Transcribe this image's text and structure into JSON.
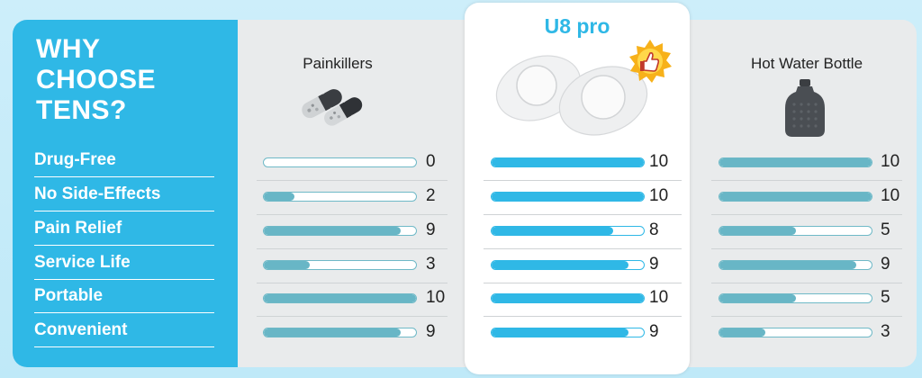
{
  "heading": [
    "WHY",
    "CHOOSE",
    "TENS?"
  ],
  "colors": {
    "sidebar": "#2fb8e6",
    "accent": "#2fb8e6",
    "bar": "#68b6c6"
  },
  "icons": [
    "pills-image",
    "tens-pads-image",
    "thumbs-up-icon",
    "hot-water-bottle-image"
  ],
  "chart_data": {
    "type": "bar",
    "orientation": "horizontal",
    "categories": [
      "Drug-Free",
      "No Side-Effects",
      "Pain Relief",
      "Service Life",
      "Portable",
      "Convenient"
    ],
    "xlim": [
      0,
      10
    ],
    "series": [
      {
        "name": "Painkillers",
        "values": [
          0,
          2,
          9,
          3,
          10,
          9
        ]
      },
      {
        "name": "U8 pro",
        "values": [
          10,
          10,
          8,
          9,
          10,
          9
        ]
      },
      {
        "name": "Hot Water Bottle",
        "values": [
          10,
          10,
          5,
          9,
          5,
          3
        ]
      }
    ]
  }
}
